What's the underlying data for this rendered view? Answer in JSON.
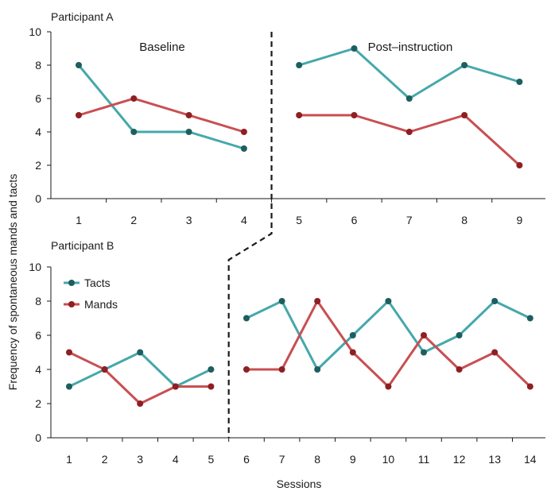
{
  "colors": {
    "tacts": "#45a8ab",
    "mands": "#c84f52",
    "tacts_dot": "#1d5e5e",
    "mands_dot": "#8e1f22"
  },
  "ylabel": "Frequency of spontaneous mands and tacts",
  "xlabel": "Sessions",
  "legend": {
    "placement": "top-left of Participant B panel",
    "items": [
      {
        "key": "tacts",
        "label": "Tacts"
      },
      {
        "key": "mands",
        "label": "Mands"
      }
    ]
  },
  "chart_data": [
    {
      "type": "line",
      "title": "Participant A",
      "phase_labels": [
        "Baseline",
        "Post–instruction"
      ],
      "ylim": [
        0,
        10
      ],
      "yticks": [
        0,
        2,
        4,
        6,
        8,
        10
      ],
      "sessions": [
        1,
        2,
        3,
        4,
        5,
        6,
        7,
        8,
        9
      ],
      "phase_change_after": 4,
      "series": [
        {
          "name": "Tacts",
          "key": "tacts",
          "x": [
            1,
            2,
            3,
            4,
            5,
            6,
            7,
            8,
            9
          ],
          "values": [
            8,
            4,
            4,
            3,
            8,
            9,
            6,
            8,
            7
          ]
        },
        {
          "name": "Mands",
          "key": "mands",
          "x": [
            1,
            2,
            3,
            4,
            5,
            6,
            7,
            8,
            9
          ],
          "values": [
            5,
            6,
            5,
            4,
            5,
            5,
            4,
            5,
            2
          ]
        }
      ]
    },
    {
      "type": "line",
      "title": "Participant B",
      "ylim": [
        0,
        10
      ],
      "yticks": [
        0,
        2,
        4,
        6,
        8,
        10
      ],
      "sessions": [
        1,
        2,
        3,
        4,
        5,
        6,
        7,
        8,
        9,
        10,
        11,
        12,
        13,
        14
      ],
      "phase_change_after": 5,
      "series": [
        {
          "name": "Tacts",
          "key": "tacts",
          "x": [
            1,
            2,
            3,
            4,
            5,
            6,
            7,
            8,
            9,
            10,
            11,
            12,
            13,
            14
          ],
          "values": [
            3,
            4,
            5,
            3,
            4,
            7,
            8,
            4,
            6,
            8,
            5,
            6,
            8,
            7
          ]
        },
        {
          "name": "Mands",
          "key": "mands",
          "x": [
            1,
            2,
            3,
            4,
            5,
            6,
            7,
            8,
            9,
            10,
            11,
            12,
            13,
            14
          ],
          "values": [
            5,
            4,
            2,
            3,
            3,
            4,
            4,
            8,
            5,
            3,
            6,
            4,
            5,
            3
          ]
        }
      ]
    }
  ]
}
